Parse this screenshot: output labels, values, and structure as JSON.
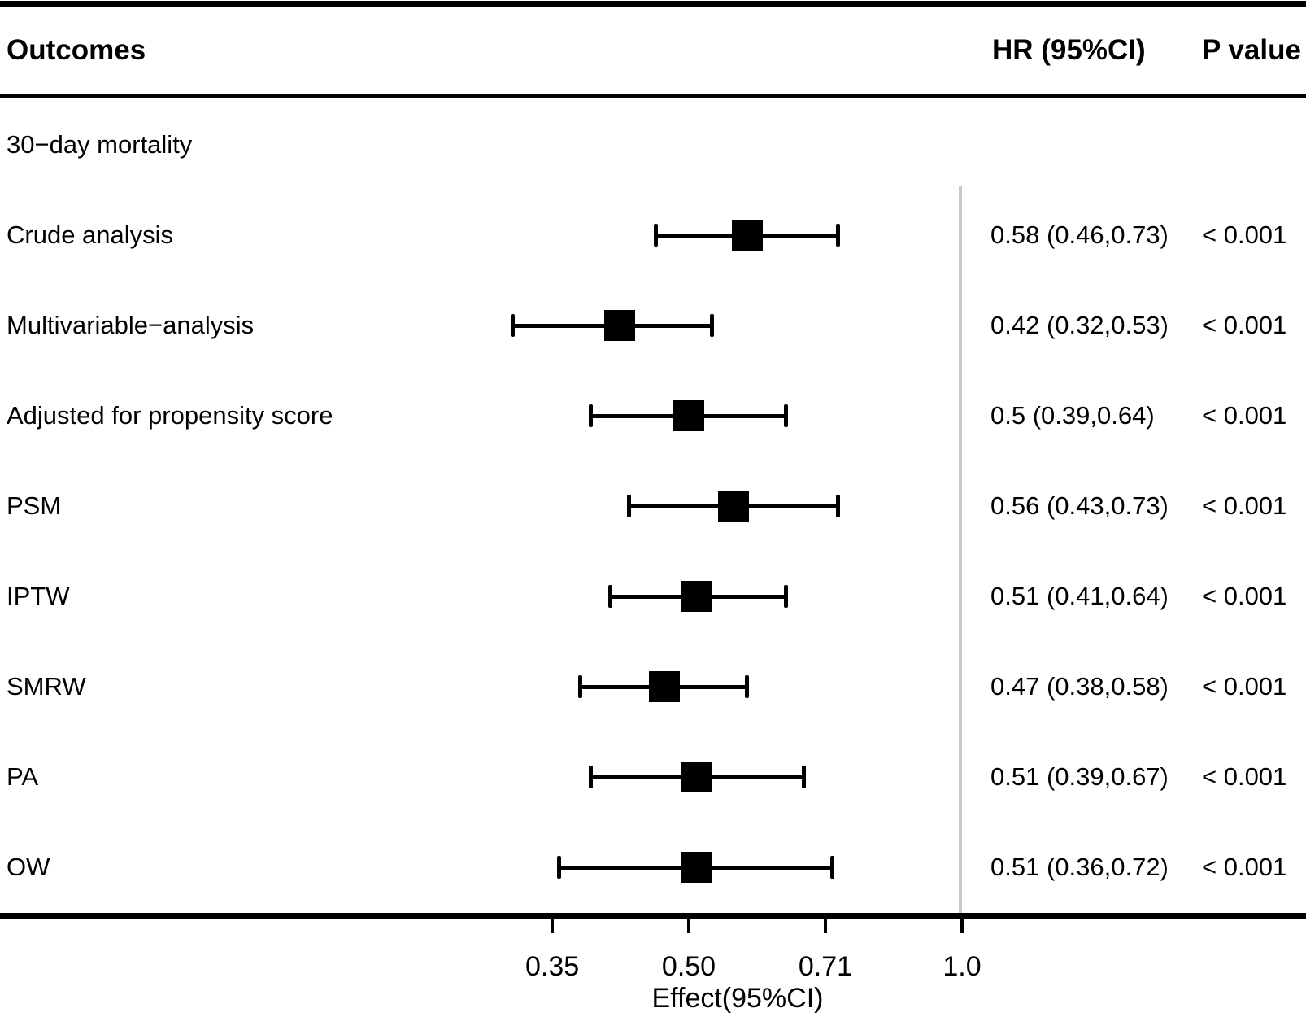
{
  "chart_data": {
    "type": "forest",
    "scale": "log",
    "headers": {
      "outcomes": "Outcomes",
      "hr": "HR (95%CI)",
      "p": "P value"
    },
    "group": "30−day mortality",
    "rows": [
      {
        "label": "Crude analysis",
        "est": 0.58,
        "lo": 0.46,
        "hi": 0.73,
        "hr_text": "0.58 (0.46,0.73)",
        "p_text": "< 0.001"
      },
      {
        "label": "Multivariable−analysis",
        "est": 0.42,
        "lo": 0.32,
        "hi": 0.53,
        "hr_text": "0.42 (0.32,0.53)",
        "p_text": "< 0.001"
      },
      {
        "label": "Adjusted for propensity score",
        "est": 0.5,
        "lo": 0.39,
        "hi": 0.64,
        "hr_text": "0.5 (0.39,0.64)",
        "p_text": "< 0.001"
      },
      {
        "label": "PSM",
        "est": 0.56,
        "lo": 0.43,
        "hi": 0.73,
        "hr_text": "0.56 (0.43,0.73)",
        "p_text": "< 0.001"
      },
      {
        "label": "IPTW",
        "est": 0.51,
        "lo": 0.41,
        "hi": 0.64,
        "hr_text": "0.51 (0.41,0.64)",
        "p_text": "< 0.001"
      },
      {
        "label": "SMRW",
        "est": 0.47,
        "lo": 0.38,
        "hi": 0.58,
        "hr_text": "0.47 (0.38,0.58)",
        "p_text": "< 0.001"
      },
      {
        "label": "PA",
        "est": 0.51,
        "lo": 0.39,
        "hi": 0.67,
        "hr_text": "0.51 (0.39,0.67)",
        "p_text": "< 0.001"
      },
      {
        "label": "OW",
        "est": 0.51,
        "lo": 0.36,
        "hi": 0.72,
        "hr_text": "0.51 (0.36,0.72)",
        "p_text": "< 0.001"
      }
    ],
    "x_ticks": [
      {
        "value": 0.3536,
        "label": "0.35"
      },
      {
        "value": 0.5,
        "label": "0.50"
      },
      {
        "value": 0.7071,
        "label": "0.71"
      },
      {
        "value": 1.0,
        "label": "1.0"
      }
    ],
    "xlabel": "Effect(95%CI)",
    "ref_line_value": 1.0,
    "legend": "none",
    "grid": "off"
  },
  "colors": {
    "ink": "#000000",
    "ref_line": "#C8C8C8",
    "background": "#FFFFFF"
  }
}
